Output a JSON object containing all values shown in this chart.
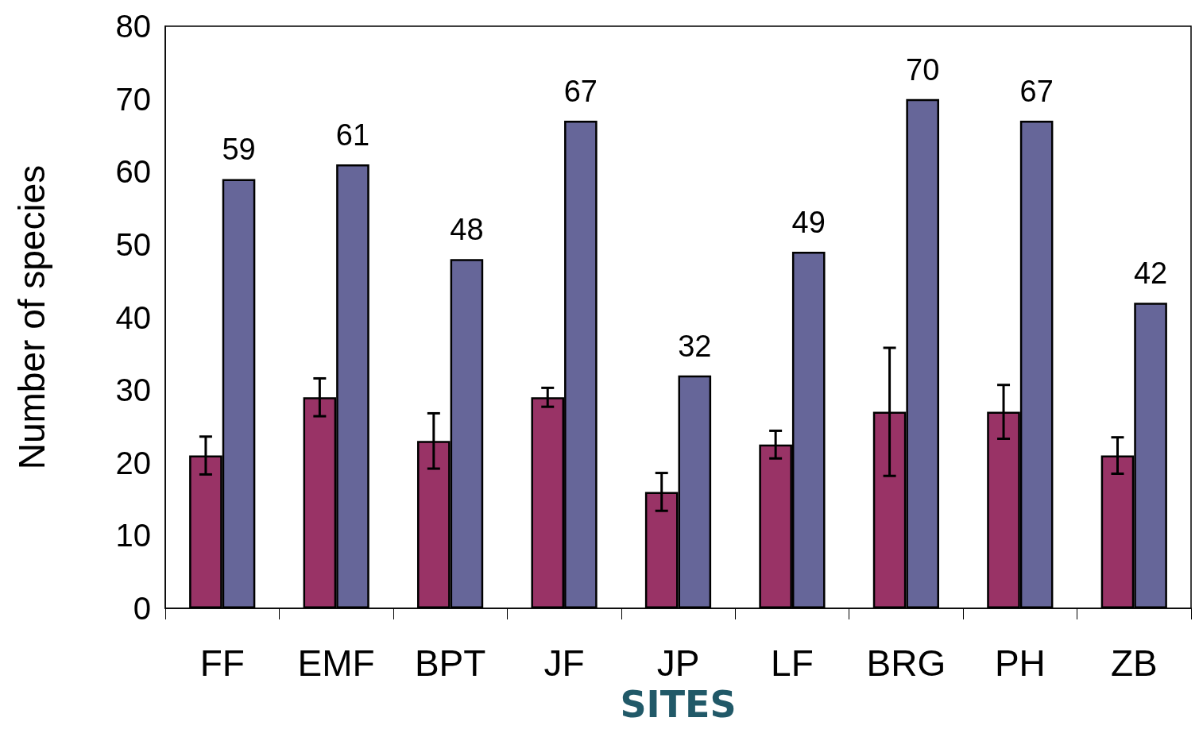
{
  "chart_data": {
    "type": "bar",
    "xlabel": "SITES",
    "ylabel": "Number of species",
    "categories": [
      "FF",
      "EMF",
      "BPT",
      "JF",
      "JP",
      "LF",
      "BRG",
      "PH",
      "ZB"
    ],
    "series": [
      {
        "color": "#993366",
        "values": [
          21,
          29,
          23,
          29,
          16,
          22.5,
          27,
          27,
          21
        ],
        "errors": [
          2.6,
          2.6,
          3.8,
          1.3,
          2.6,
          1.9,
          8.8,
          3.7,
          2.5
        ]
      },
      {
        "color": "#666699",
        "values": [
          59,
          61,
          48,
          67,
          32,
          49,
          70,
          67,
          42
        ],
        "value_labels": [
          "59",
          "61",
          "48",
          "67",
          "32",
          "49",
          "70",
          "67",
          "42"
        ]
      }
    ],
    "ylim": [
      0,
      80
    ],
    "yticks": [
      0,
      10,
      20,
      30,
      40,
      50,
      60,
      70,
      80
    ],
    "grid": false
  }
}
